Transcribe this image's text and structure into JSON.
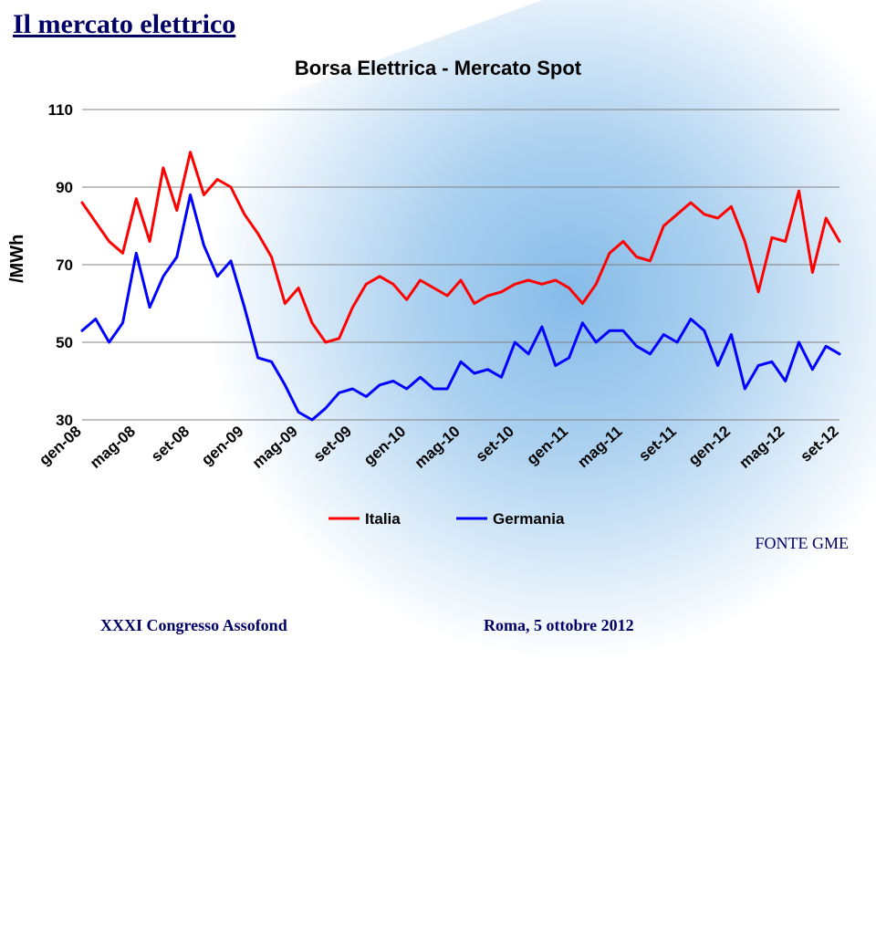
{
  "page_title": "Il mercato elettrico",
  "chart_title": "Borsa Elettrica - Mercato Spot",
  "y_axis_label": "/MWh",
  "source_label": "FONTE GME",
  "footer_left": "XXXI Congresso Assofond",
  "footer_right": "Roma, 5 ottobre 2012",
  "chart": {
    "type": "line",
    "ylim": [
      30,
      110
    ],
    "ytick_step": 20,
    "yticks": [
      30,
      50,
      70,
      90,
      110
    ],
    "grid_color": "#808080",
    "grid_stroke": 1,
    "plot_bg": "none",
    "line_width": 3,
    "x_labels": [
      "gen-08",
      "mag-08",
      "set-08",
      "gen-09",
      "mag-09",
      "set-09",
      "gen-10",
      "mag-10",
      "set-10",
      "gen-11",
      "mag-11",
      "set-11",
      "gen-12",
      "mag-12",
      "set-12"
    ],
    "x_label_fontsize": 17,
    "x_label_weight": "bold",
    "x_label_rotation": -42,
    "tick_font_size": 17,
    "legend": {
      "position": "bottom-center",
      "items": [
        "Italia",
        "Germania"
      ],
      "font_size": 17,
      "font_weight": "bold"
    },
    "series": [
      {
        "name": "Italia",
        "color": "#ff0000",
        "values": [
          86,
          81,
          76,
          73,
          87,
          76,
          95,
          84,
          99,
          88,
          92,
          90,
          83,
          78,
          72,
          60,
          64,
          55,
          50,
          51,
          59,
          65,
          67,
          65,
          61,
          66,
          64,
          62,
          66,
          60,
          62,
          63,
          65,
          66,
          65,
          66,
          64,
          60,
          65,
          73,
          76,
          72,
          71,
          80,
          83,
          86,
          83,
          82,
          85,
          76,
          63,
          77,
          76,
          89,
          68,
          82,
          76
        ]
      },
      {
        "name": "Germania",
        "color": "#0000ff",
        "values": [
          53,
          56,
          50,
          55,
          73,
          59,
          67,
          72,
          88,
          75,
          67,
          71,
          59,
          46,
          45,
          39,
          32,
          30,
          33,
          37,
          38,
          36,
          39,
          40,
          38,
          41,
          38,
          38,
          45,
          42,
          43,
          41,
          50,
          47,
          54,
          44,
          46,
          55,
          50,
          53,
          53,
          49,
          47,
          52,
          50,
          56,
          53,
          44,
          52,
          38,
          44,
          45,
          40,
          50,
          43,
          49,
          47
        ]
      }
    ]
  }
}
